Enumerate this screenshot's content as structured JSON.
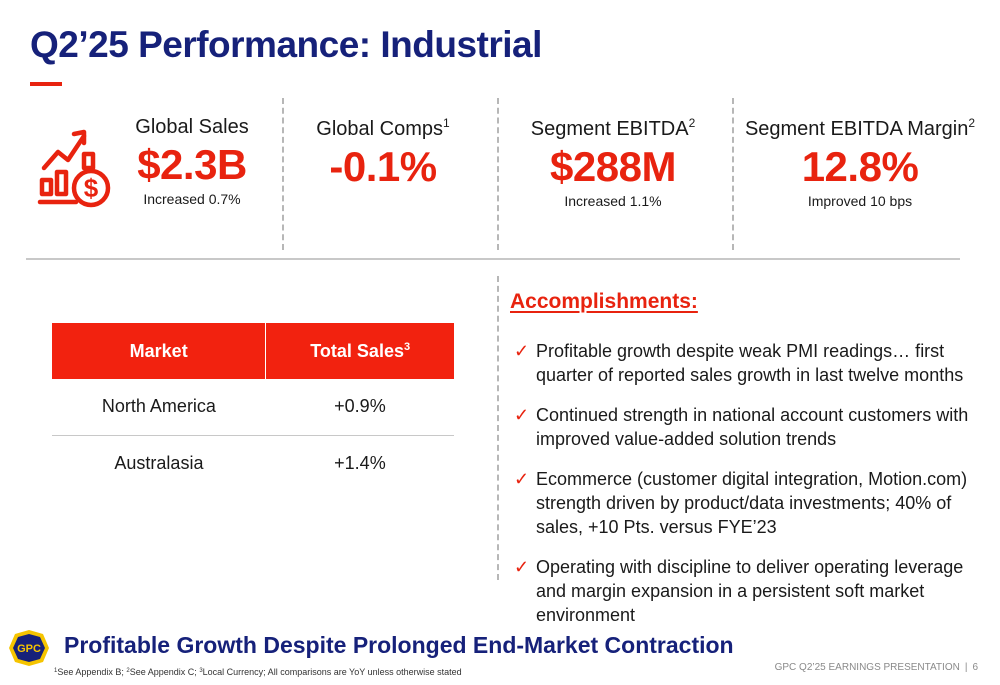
{
  "page": {
    "title": "Q2’25 Performance: Industrial"
  },
  "colors": {
    "brand_red": "#e8230f",
    "brand_navy": "#16217a",
    "table_header": "#f2220f"
  },
  "kpis": [
    {
      "label": "Global Sales",
      "sup": "",
      "value": "$2.3B",
      "note": "Increased 0.7%",
      "icon": "sales-growth-icon"
    },
    {
      "label": "Global Comps",
      "sup": "1",
      "value": "-0.1%",
      "note": ""
    },
    {
      "label": "Segment EBITDA",
      "sup": "2",
      "value": "$288M",
      "note": "Increased 1.1%"
    },
    {
      "label": "Segment EBITDA Margin",
      "sup": "2",
      "value": "12.8%",
      "note": "Improved 10 bps"
    }
  ],
  "sales_table": {
    "headers": [
      "Market",
      "Total Sales"
    ],
    "header_sup": "3",
    "rows": [
      [
        "North America",
        "+0.9%"
      ],
      [
        "Australasia",
        "+1.4%"
      ]
    ]
  },
  "accomplishments": {
    "heading": "Accomplishments:",
    "check_icon": "checkmark-icon",
    "items": [
      "Profitable growth despite weak PMI readings… first quarter of reported sales growth in last twelve months",
      "Continued strength in national account customers with improved value-added solution trends",
      "Ecommerce (customer digital integration, Motion.com) strength driven by product/data investments; 40% of sales, +10 Pts. versus FYE’23",
      "Operating with discipline to deliver operating leverage and margin expansion in a persistent soft market environment"
    ]
  },
  "footer": {
    "logo_text": "GPC",
    "tagline": "Profitable Growth Despite Prolonged End-Market Contraction",
    "footnotes": [
      {
        "sup": "1",
        "text": "See Appendix B; "
      },
      {
        "sup": "2",
        "text": "See Appendix C; "
      },
      {
        "sup": "3",
        "text": "Local Currency; All comparisons are YoY unless otherwise stated"
      }
    ],
    "presentation_label": "GPC Q2’25 EARNINGS PRESENTATION",
    "separator": "|",
    "page_number": "6"
  }
}
